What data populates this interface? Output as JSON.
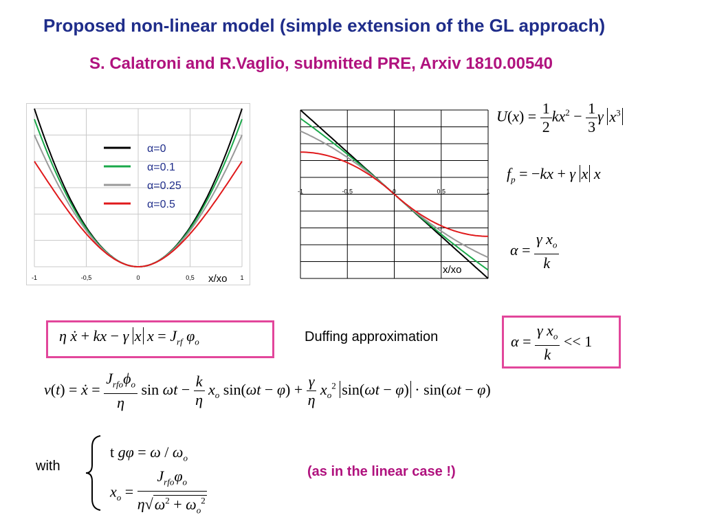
{
  "slide": {
    "title": "Proposed non-linear model (simple extension of the GL  approach)",
    "subtitle": "S. Calatroni and R.Vaglio, submitted PRE, Arxiv 1810.00540",
    "duffing_label": "Duffing approximation",
    "with_label": "with",
    "linear_case_note": "(as in the linear case !)"
  },
  "colors": {
    "title": "#1f2d8a",
    "subtitle": "#b0127e",
    "box_border": "#e2469b"
  },
  "chart_data": [
    {
      "type": "line",
      "xlabel": "x/xo",
      "xlim": [
        -1,
        1
      ],
      "x_ticks": [
        "-1",
        "-0,5",
        "0",
        "0,5",
        "1"
      ],
      "grid": true,
      "legend_position": "top-center",
      "series": [
        {
          "name": "α=0",
          "color": "#000000",
          "formula": "0.5x²"
        },
        {
          "name": "α=0.1",
          "color": "#1aa84a",
          "formula": "0.5x² - α/3|x|³"
        },
        {
          "name": "α=0.25",
          "color": "#999999",
          "formula": "0.5x² - α/3|x|³"
        },
        {
          "name": "α=0.5",
          "color": "#e0191b",
          "formula": "0.5x² - α/3|x|³"
        }
      ]
    },
    {
      "type": "line",
      "xlabel": "x/xo",
      "xlim": [
        -1,
        1
      ],
      "x_ticks": [
        "-1",
        "-0,5",
        "0",
        "0,5",
        "1"
      ],
      "grid": true,
      "series": [
        {
          "name": "α=0",
          "color": "#000000",
          "formula": "-x"
        },
        {
          "name": "α=0.1",
          "color": "#1aa84a",
          "formula": "-x + α|x|x"
        },
        {
          "name": "α=0.25",
          "color": "#999999",
          "formula": "-x + α|x|x"
        },
        {
          "name": "α=0.5",
          "color": "#e0191b",
          "formula": "-x + α|x|x"
        }
      ]
    }
  ]
}
